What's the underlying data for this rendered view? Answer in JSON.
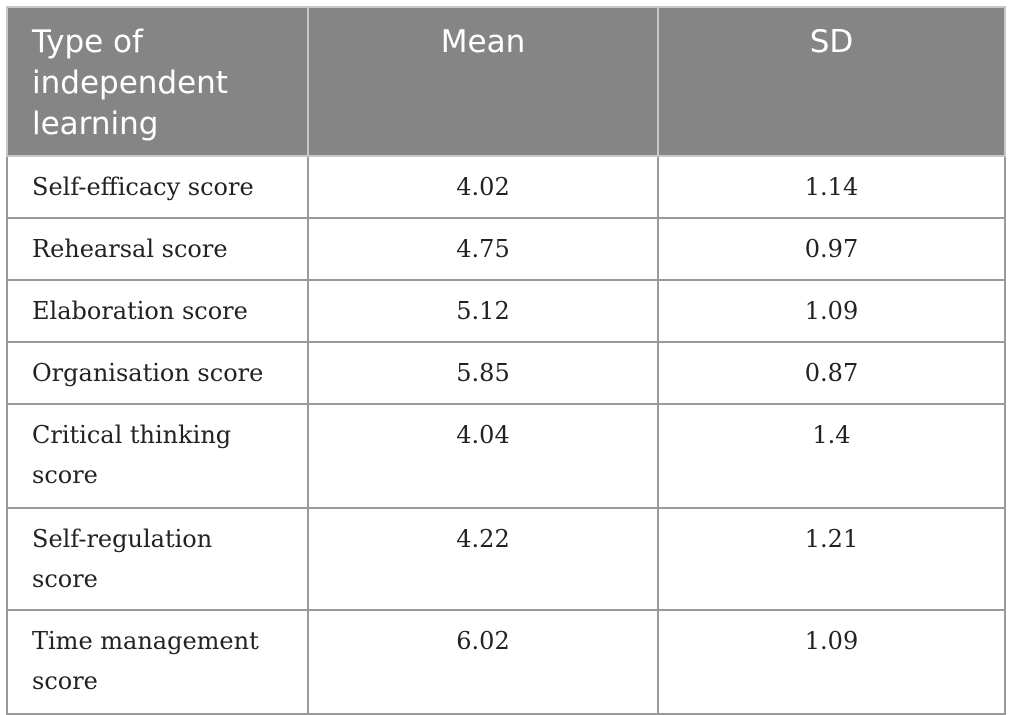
{
  "table": {
    "headers": [
      "Type of independent learning",
      "Mean",
      "SD"
    ],
    "rows": [
      {
        "type": "Self-efficacy score",
        "mean": "4.02",
        "sd": "1.14"
      },
      {
        "type": "Rehearsal score",
        "mean": "4.75",
        "sd": "0.97"
      },
      {
        "type": "Elaboration score",
        "mean": "5.12",
        "sd": "1.09"
      },
      {
        "type": "Organisation score",
        "mean": "5.85",
        "sd": "0.87"
      },
      {
        "type": "Critical thinking score",
        "mean": "4.04",
        "sd": "1.4"
      },
      {
        "type": "Self-regulation score",
        "mean": "4.22",
        "sd": "1.21"
      },
      {
        "type": "Time management score",
        "mean": "6.02",
        "sd": "1.09"
      }
    ]
  },
  "colors": {
    "header_bg": "#858585",
    "header_text": "#ffffff",
    "border": "#9a9a9a"
  }
}
